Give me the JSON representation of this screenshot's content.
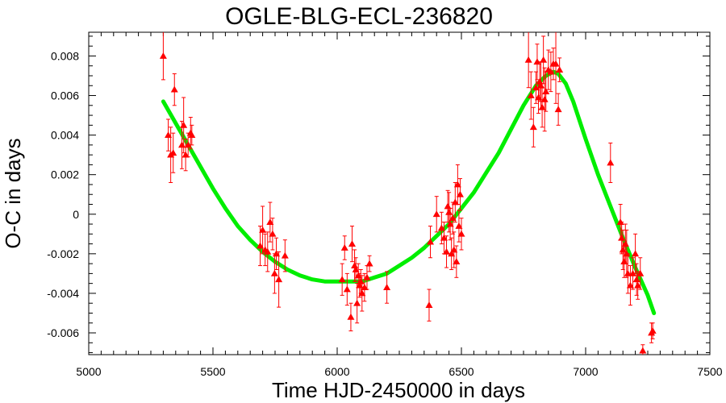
{
  "chart_data": {
    "type": "scatter",
    "title": "OGLE-BLG-ECL-236820",
    "xlabel": "Time HJD-2450000 in days",
    "ylabel": "O-C in days",
    "xlim": [
      5000,
      7500
    ],
    "ylim": [
      -0.0071,
      0.0092
    ],
    "x_ticks": [
      5000,
      5500,
      6000,
      6500,
      7000,
      7500
    ],
    "x_tick_labels": [
      "5000",
      "5500",
      "6000",
      "6500",
      "7000",
      "7500"
    ],
    "y_ticks": [
      -0.006,
      -0.004,
      -0.002,
      0,
      0.002,
      0.004,
      0.006,
      0.008
    ],
    "y_tick_labels": [
      "-0.006",
      "-0.004",
      "-0.002",
      "0",
      "0.002",
      "0.004",
      "0.006",
      "0.008"
    ],
    "grid": false,
    "colors": {
      "points": "#ff0000",
      "fit": "#00ee00"
    },
    "series": [
      {
        "kind": "points-with-errorbars",
        "points": [
          [
            5300,
            0.008,
            0.0012
          ],
          [
            5320,
            0.004,
            0.0008
          ],
          [
            5330,
            0.003,
            0.0014
          ],
          [
            5340,
            0.0031,
            0.001
          ],
          [
            5345,
            0.0063,
            0.0008
          ],
          [
            5375,
            0.0035,
            0.0012
          ],
          [
            5382,
            0.0045,
            0.0014
          ],
          [
            5390,
            0.003,
            0.0008
          ],
          [
            5400,
            0.0035,
            0.0006
          ],
          [
            5410,
            0.0041,
            0.0008
          ],
          [
            5415,
            0.004,
            0.0005
          ],
          [
            5690,
            -0.0016,
            0.001
          ],
          [
            5700,
            -0.0008,
            0.0012
          ],
          [
            5710,
            -0.0018,
            0.0008
          ],
          [
            5720,
            -0.0019,
            0.001
          ],
          [
            5730,
            -0.0004,
            0.001
          ],
          [
            5740,
            -0.001,
            0.0008
          ],
          [
            5748,
            -0.003,
            0.001
          ],
          [
            5755,
            -0.002,
            0.0008
          ],
          [
            5765,
            -0.0033,
            0.0014
          ],
          [
            5790,
            -0.0021,
            0.0008
          ],
          [
            6020,
            -0.0033,
            0.0008
          ],
          [
            6030,
            -0.0017,
            0.0006
          ],
          [
            6040,
            -0.0038,
            0.0008
          ],
          [
            6055,
            -0.0052,
            0.0007
          ],
          [
            6060,
            -0.0015,
            0.0009
          ],
          [
            6070,
            -0.0026,
            0.0008
          ],
          [
            6075,
            -0.0028,
            0.0006
          ],
          [
            6080,
            -0.0045,
            0.001
          ],
          [
            6085,
            -0.0031,
            0.0006
          ],
          [
            6090,
            -0.0036,
            0.0006
          ],
          [
            6095,
            -0.0034,
            0.0006
          ],
          [
            6100,
            -0.004,
            0.0009
          ],
          [
            6110,
            -0.0037,
            0.0007
          ],
          [
            6120,
            -0.0032,
            0.0006
          ],
          [
            6130,
            -0.0025,
            0.0004
          ],
          [
            6200,
            -0.0037,
            0.0008
          ],
          [
            6370,
            -0.0046,
            0.0008
          ],
          [
            6375,
            -0.0014,
            0.0008
          ],
          [
            6400,
            0.0,
            0.0009
          ],
          [
            6420,
            -0.0007,
            0.0008
          ],
          [
            6430,
            -0.0012,
            0.0008
          ],
          [
            6440,
            -0.0019,
            0.0008
          ],
          [
            6445,
            0.0004,
            0.0008
          ],
          [
            6450,
            0.0001,
            0.001
          ],
          [
            6455,
            -0.0005,
            0.0008
          ],
          [
            6460,
            -0.002,
            0.0008
          ],
          [
            6465,
            -0.0002,
            0.0008
          ],
          [
            6470,
            -0.0018,
            0.0009
          ],
          [
            6475,
            0.0006,
            0.001
          ],
          [
            6480,
            -0.0024,
            0.0008
          ],
          [
            6485,
            0.0015,
            0.001
          ],
          [
            6490,
            -0.0006,
            0.0008
          ],
          [
            6495,
            0.001,
            0.0008
          ],
          [
            6500,
            -0.001,
            0.0008
          ],
          [
            6770,
            0.0078,
            0.0014
          ],
          [
            6780,
            0.006,
            0.0012
          ],
          [
            6790,
            0.0044,
            0.001
          ],
          [
            6800,
            0.0064,
            0.0008
          ],
          [
            6805,
            0.0077,
            0.0009
          ],
          [
            6810,
            0.0059,
            0.0008
          ],
          [
            6815,
            0.0067,
            0.001
          ],
          [
            6820,
            0.0065,
            0.0012
          ],
          [
            6825,
            0.0054,
            0.001
          ],
          [
            6830,
            0.0078,
            0.0012
          ],
          [
            6835,
            0.0058,
            0.0016
          ],
          [
            6840,
            0.0062,
            0.001
          ],
          [
            6850,
            0.0073,
            0.001
          ],
          [
            6860,
            0.0072,
            0.001
          ],
          [
            6870,
            0.0076,
            0.0008
          ],
          [
            6880,
            0.0076,
            0.002
          ],
          [
            6890,
            0.0053,
            0.0008
          ],
          [
            6895,
            0.0073,
            0.0006
          ],
          [
            7100,
            0.0026,
            0.001
          ],
          [
            7140,
            -0.0004,
            0.0009
          ],
          [
            7145,
            -0.0012,
            0.0008
          ],
          [
            7150,
            -0.0018,
            0.001
          ],
          [
            7155,
            -0.0024,
            0.0008
          ],
          [
            7160,
            -0.0015,
            0.001
          ],
          [
            7165,
            -0.002,
            0.0012
          ],
          [
            7170,
            -0.003,
            0.001
          ],
          [
            7180,
            -0.0036,
            0.001
          ],
          [
            7190,
            -0.003,
            0.0008
          ],
          [
            7200,
            -0.002,
            0.001
          ],
          [
            7205,
            -0.0033,
            0.0008
          ],
          [
            7210,
            -0.0036,
            0.0007
          ],
          [
            7220,
            -0.003,
            0.0008
          ],
          [
            7230,
            -0.0069,
            0.0003
          ],
          [
            7265,
            -0.006,
            0.0005
          ],
          [
            7270,
            -0.0059,
            0.0004
          ]
        ]
      },
      {
        "kind": "fit-curve",
        "points": [
          [
            5300,
            0.0057
          ],
          [
            5350,
            0.0046
          ],
          [
            5400,
            0.0035
          ],
          [
            5450,
            0.0024
          ],
          [
            5500,
            0.0013
          ],
          [
            5550,
            0.0003
          ],
          [
            5600,
            -0.0006
          ],
          [
            5650,
            -0.0013
          ],
          [
            5700,
            -0.0019
          ],
          [
            5750,
            -0.0024
          ],
          [
            5800,
            -0.0028
          ],
          [
            5850,
            -0.0031
          ],
          [
            5900,
            -0.0033
          ],
          [
            5950,
            -0.0034
          ],
          [
            6000,
            -0.0034
          ],
          [
            6050,
            -0.0034
          ],
          [
            6100,
            -0.0034
          ],
          [
            6150,
            -0.0032
          ],
          [
            6200,
            -0.003
          ],
          [
            6250,
            -0.0026
          ],
          [
            6300,
            -0.0022
          ],
          [
            6350,
            -0.0017
          ],
          [
            6400,
            -0.0011
          ],
          [
            6450,
            -0.0005
          ],
          [
            6500,
            0.0003
          ],
          [
            6550,
            0.0011
          ],
          [
            6600,
            0.0021
          ],
          [
            6650,
            0.0031
          ],
          [
            6700,
            0.0043
          ],
          [
            6750,
            0.0055
          ],
          [
            6800,
            0.0065
          ],
          [
            6840,
            0.007
          ],
          [
            6870,
            0.0072
          ],
          [
            6890,
            0.0071
          ],
          [
            6920,
            0.0066
          ],
          [
            6950,
            0.0057
          ],
          [
            7000,
            0.0038
          ],
          [
            7050,
            0.002
          ],
          [
            7100,
            0.0004
          ],
          [
            7150,
            -0.0012
          ],
          [
            7200,
            -0.0027
          ],
          [
            7250,
            -0.0041
          ],
          [
            7275,
            -0.005
          ]
        ]
      }
    ]
  }
}
